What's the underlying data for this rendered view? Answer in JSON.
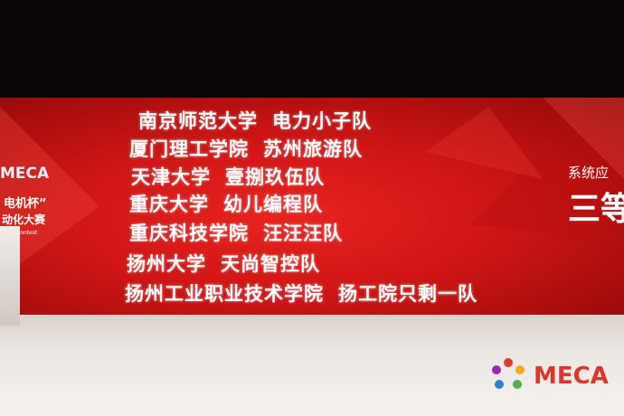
{
  "left_panel": {
    "logo": "MECA",
    "line1": "电机杯”",
    "line2": "动化大赛",
    "line3": "Contest"
  },
  "entries": [
    {
      "school": "南京师范大学",
      "team": "电力小子队"
    },
    {
      "school": "厦门理工学院",
      "team": "苏州旅游队"
    },
    {
      "school": "天津大学",
      "team": "壹捌玖伍队"
    },
    {
      "school": "重庆大学",
      "team": "幼儿编程队"
    },
    {
      "school": "重庆科技学院",
      "team": "汪汪汪队"
    },
    {
      "school": "扬州大学",
      "team": "天尚智控队"
    },
    {
      "school": "扬州工业职业技术学院",
      "team": "扬工院只剩一队"
    }
  ],
  "right_panel": {
    "line1": "系统应",
    "line2": "三等"
  },
  "logo": "MECA"
}
